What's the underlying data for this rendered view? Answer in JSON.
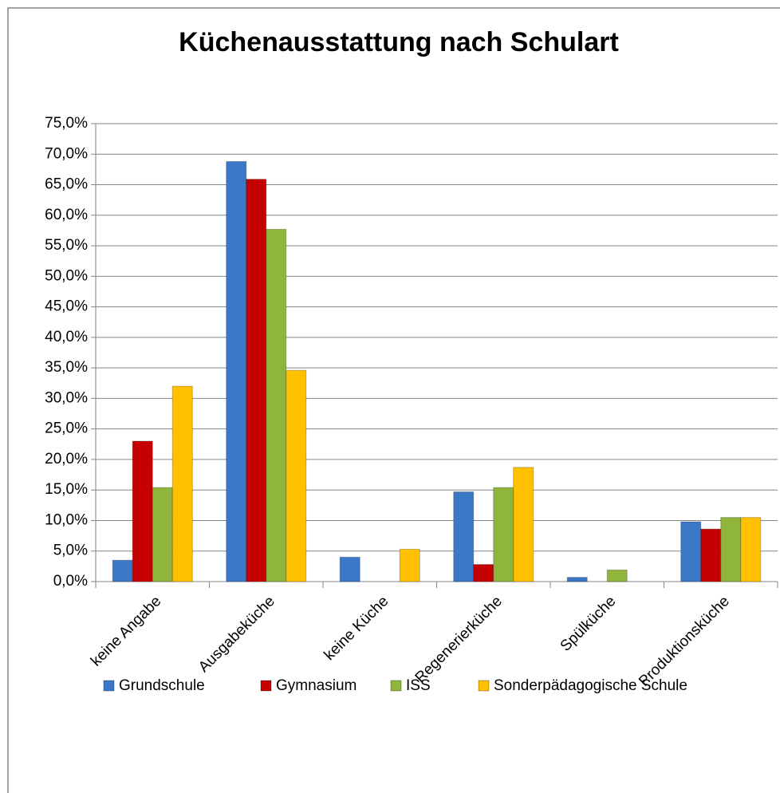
{
  "chart_data": {
    "type": "bar",
    "title": "Küchenausstattung nach Schulart",
    "categories": [
      "keine Angabe",
      "Ausgabeküche",
      "keine Küche",
      "Regenerierküche",
      "Spülküche",
      "Produktionsküche"
    ],
    "series": [
      {
        "name": "Grundschule",
        "color": "#3c78c8",
        "values": [
          3.5,
          68.8,
          4.0,
          14.7,
          0.7,
          9.8
        ]
      },
      {
        "name": "Gymnasium",
        "color": "#c40000",
        "values": [
          23.0,
          65.9,
          0,
          2.8,
          0,
          8.6
        ]
      },
      {
        "name": "ISS",
        "color": "#8fb53c",
        "values": [
          15.4,
          57.7,
          0,
          15.4,
          1.9,
          10.5
        ]
      },
      {
        "name": "Sonderpädagogische Schule",
        "color": "#ffc000",
        "values": [
          32.0,
          34.6,
          5.3,
          18.7,
          0,
          10.5
        ]
      }
    ],
    "ylim": [
      0,
      75
    ],
    "yticks": [
      {
        "value": 0,
        "label": "0,0%"
      },
      {
        "value": 5,
        "label": "5,0%"
      },
      {
        "value": 10,
        "label": "10,0%"
      },
      {
        "value": 15,
        "label": "15,0%"
      },
      {
        "value": 20,
        "label": "20,0%"
      },
      {
        "value": 25,
        "label": "25,0%"
      },
      {
        "value": 30,
        "label": "30,0%"
      },
      {
        "value": 35,
        "label": "35,0%"
      },
      {
        "value": 40,
        "label": "40,0%"
      },
      {
        "value": 45,
        "label": "45,0%"
      },
      {
        "value": 50,
        "label": "50,0%"
      },
      {
        "value": 55,
        "label": "55,0%"
      },
      {
        "value": 60,
        "label": "60,0%"
      },
      {
        "value": 65,
        "label": "65,0%"
      },
      {
        "value": 70,
        "label": "70,0%"
      },
      {
        "value": 75,
        "label": "75,0%"
      }
    ],
    "grid": true
  }
}
